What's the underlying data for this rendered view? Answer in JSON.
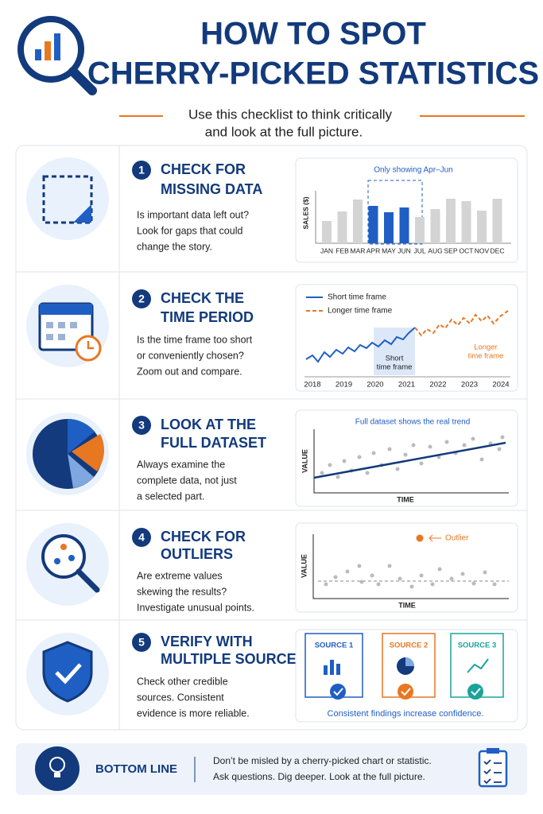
{
  "header": {
    "title_lines": [
      "HOW TO SPOT",
      "CHERRY-PICKED STATISTICS"
    ],
    "subtitle_lines": [
      "Use this checklist to think critically",
      "and look at the full picture."
    ]
  },
  "steps": [
    {
      "number": "1",
      "heading_lines": [
        "CHECK FOR",
        "MISSING DATA"
      ],
      "body_lines": [
        "Is important data left out?",
        "Look for gaps that could",
        "change the story."
      ],
      "chart": {
        "caption": "Only showing Apr–Jun",
        "axis_label": "SALES ($)",
        "categories": [
          "JAN",
          "FEB",
          "MAR",
          "APR",
          "MAY",
          "JUN",
          "JUL",
          "AUG",
          "SEP",
          "OCT",
          "NOV",
          "DEC"
        ],
        "values": [
          28,
          40,
          55,
          47,
          39,
          45,
          33,
          43,
          56,
          53,
          41,
          56
        ],
        "colors": [
          "#d4d4d4",
          "#d4d4d4",
          "#d4d4d4",
          "#1f5fc4",
          "#1f5fc4",
          "#1f5fc4",
          "#d4d4d4",
          "#d4d4d4",
          "#d4d4d4",
          "#d4d4d4",
          "#d4d4d4",
          "#d4d4d4"
        ]
      }
    },
    {
      "number": "2",
      "heading_lines": [
        "CHECK THE",
        "TIME PERIOD"
      ],
      "body_lines": [
        "Is the time frame too short",
        "or conveniently chosen?",
        "Zoom out and compare."
      ],
      "chart": {
        "legend": [
          "Short time frame",
          "Longer time frame"
        ],
        "short_label_lines": [
          "Short",
          "time frame"
        ],
        "long_label_lines": [
          "Longer",
          "time frame"
        ],
        "years": [
          "2018",
          "2019",
          "2020",
          "2021",
          "2022",
          "2023",
          "2024"
        ]
      }
    },
    {
      "number": "3",
      "heading_lines": [
        "LOOK AT THE",
        "FULL DATASET"
      ],
      "body_lines": [
        "Always examine the",
        "complete data, not just",
        "a selected part."
      ],
      "chart": {
        "caption": "Full dataset shows the real trend",
        "y_label": "VALUE",
        "x_label": "TIME"
      }
    },
    {
      "number": "4",
      "heading_lines": [
        "CHECK FOR",
        "OUTLIERS"
      ],
      "body_lines": [
        "Are extreme values",
        "skewing the results?",
        "Investigate unusual points."
      ],
      "chart": {
        "annotation": "Outlier",
        "y_label": "VALUE",
        "x_label": "TIME"
      }
    },
    {
      "number": "5",
      "heading_lines": [
        "VERIFY WITH",
        "MULTIPLE SOURCES"
      ],
      "body_lines": [
        "Check other credible",
        "sources. Consistent",
        "evidence is more reliable."
      ],
      "chart": {
        "sources": [
          "SOURCE 1",
          "SOURCE 2",
          "SOURCE 3"
        ],
        "caption": "Consistent findings increase confidence."
      }
    }
  ],
  "bottom": {
    "label": "BOTTOM LINE",
    "lines": [
      "Don’t be misled by a cherry-picked chart or statistic.",
      "Ask questions. Dig deeper. Look at the full picture."
    ]
  }
}
